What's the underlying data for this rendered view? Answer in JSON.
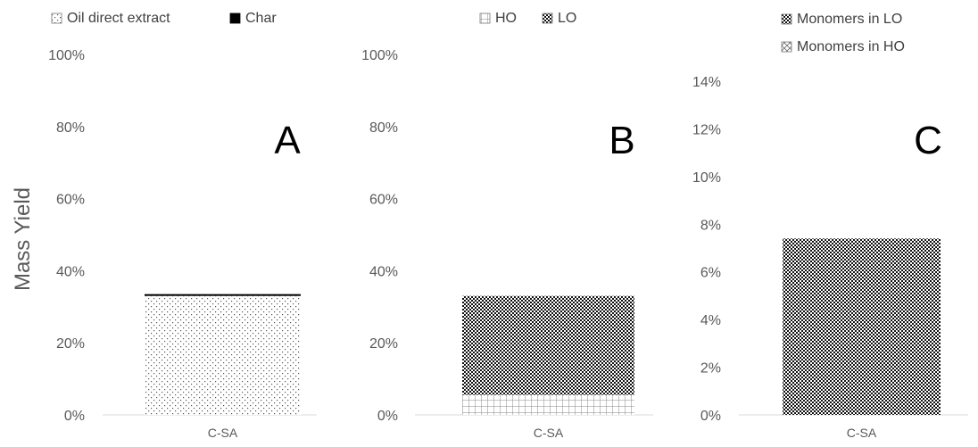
{
  "figure": {
    "ylabel": "Mass Yield"
  },
  "chart_data": [
    {
      "type": "bar",
      "stacked": true,
      "panel_label": "A",
      "categories": [
        "C-SA"
      ],
      "series": [
        {
          "name": "Oil direct extract",
          "values": [
            0.33
          ],
          "pattern": "dots",
          "color": "#ffffff"
        },
        {
          "name": "Char",
          "values": [
            0.005
          ],
          "pattern": "solid",
          "color": "#000000"
        }
      ],
      "ylim": [
        0,
        1.0
      ],
      "yticks": [
        "0%",
        "20%",
        "40%",
        "60%",
        "80%",
        "100%"
      ],
      "legend_position": "top",
      "grid": false
    },
    {
      "type": "bar",
      "stacked": true,
      "panel_label": "B",
      "categories": [
        "C-SA"
      ],
      "series": [
        {
          "name": "HO",
          "values": [
            0.055
          ],
          "pattern": "grid",
          "color": "#ffffff"
        },
        {
          "name": "LO",
          "values": [
            0.275
          ],
          "pattern": "checker",
          "color": "#000000"
        }
      ],
      "ylim": [
        0,
        1.0
      ],
      "yticks": [
        "0%",
        "20%",
        "40%",
        "60%",
        "80%",
        "100%"
      ],
      "legend_position": "top",
      "grid": false
    },
    {
      "type": "bar",
      "stacked": true,
      "panel_label": "C",
      "categories": [
        "C-SA"
      ],
      "series": [
        {
          "name": "Monomers in LO",
          "values": [
            0.074
          ],
          "pattern": "checker",
          "color": "#000000"
        },
        {
          "name": "Monomers in HO",
          "values": [
            0.0
          ],
          "pattern": "diamond",
          "color": "#ffffff"
        }
      ],
      "ylim": [
        0,
        0.14
      ],
      "yticks": [
        "0%",
        "2%",
        "4%",
        "6%",
        "8%",
        "10%",
        "12%",
        "14%"
      ],
      "legend_position": "top",
      "grid": false
    }
  ]
}
